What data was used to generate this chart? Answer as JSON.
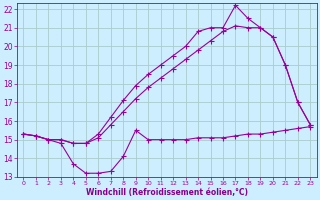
{
  "background_color": "#cceeff",
  "grid_color": "#aacccc",
  "line_color": "#990099",
  "marker_color": "#990099",
  "xlabel": "Windchill (Refroidissement éolien,°C)",
  "xlabel_color": "#880088",
  "xlim": [
    -0.5,
    23.5
  ],
  "ylim": [
    13,
    22.3
  ],
  "yticks": [
    13,
    14,
    15,
    16,
    17,
    18,
    19,
    20,
    21,
    22
  ],
  "xticks": [
    0,
    1,
    2,
    3,
    4,
    5,
    6,
    7,
    8,
    9,
    10,
    11,
    12,
    13,
    14,
    15,
    16,
    17,
    18,
    19,
    20,
    21,
    22,
    23
  ],
  "series1_x": [
    0,
    1,
    2,
    3,
    4,
    5,
    6,
    7,
    8,
    9,
    10,
    11,
    12,
    13,
    14,
    15,
    16,
    17,
    18,
    19,
    20,
    21,
    22,
    23
  ],
  "series1_y": [
    15.3,
    15.2,
    15.0,
    14.8,
    13.7,
    13.2,
    13.2,
    13.3,
    14.1,
    15.5,
    15.0,
    15.0,
    15.0,
    15.0,
    15.1,
    15.1,
    15.1,
    15.2,
    15.3,
    15.3,
    15.4,
    15.5,
    15.6,
    15.7
  ],
  "series2_x": [
    0,
    1,
    2,
    3,
    4,
    5,
    6,
    7,
    8,
    9,
    10,
    11,
    12,
    13,
    14,
    15,
    16,
    17,
    18,
    19,
    20,
    21,
    22,
    23
  ],
  "series2_y": [
    15.3,
    15.2,
    15.0,
    15.0,
    14.8,
    14.8,
    15.1,
    15.8,
    16.5,
    17.2,
    17.8,
    18.3,
    18.8,
    19.3,
    19.8,
    20.3,
    20.8,
    21.1,
    21.0,
    21.0,
    20.5,
    19.0,
    17.0,
    15.8
  ],
  "series3_x": [
    0,
    1,
    2,
    3,
    4,
    5,
    6,
    7,
    8,
    9,
    10,
    11,
    12,
    13,
    14,
    15,
    16,
    17,
    18,
    19,
    20,
    21,
    22,
    23
  ],
  "series3_y": [
    15.3,
    15.2,
    15.0,
    15.0,
    14.8,
    14.8,
    15.3,
    16.2,
    17.1,
    17.9,
    18.5,
    19.0,
    19.5,
    20.0,
    20.8,
    21.0,
    21.0,
    22.2,
    21.5,
    21.0,
    20.5,
    19.0,
    17.0,
    15.8
  ]
}
